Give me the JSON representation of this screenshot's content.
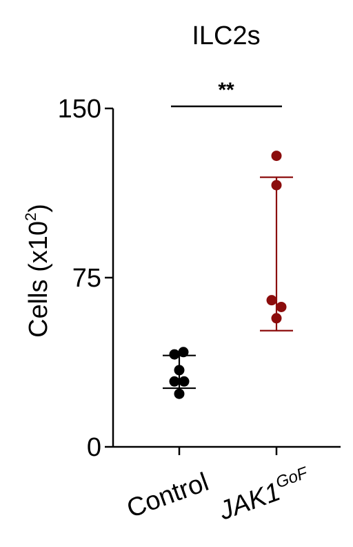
{
  "chart_data": {
    "type": "scatter",
    "title": "ILC2s",
    "ylabel": "Cells (x10",
    "ylabel_superscript": "2",
    "ylabel_suffix": ")",
    "ylim": [
      0,
      150
    ],
    "yticks": [
      "0",
      "75",
      "150"
    ],
    "categories": [
      {
        "label": "Control",
        "italic": false,
        "superscript": ""
      },
      {
        "label": "JAK1",
        "italic": true,
        "superscript": "GoF"
      }
    ],
    "series": [
      {
        "values": [
          41,
          42,
          34,
          29,
          29,
          23.5
        ],
        "jitter": [
          -0.07,
          0.06,
          0.0,
          -0.07,
          0.07,
          0.0
        ],
        "error_low": 26,
        "error_high": 40.5,
        "color": "#000000"
      },
      {
        "values": [
          129,
          116,
          65,
          62,
          57
        ],
        "jitter": [
          0.0,
          0.0,
          -0.07,
          0.07,
          0.0
        ],
        "error_low": 51.5,
        "error_high": 119.5,
        "color": "#8b0c0c"
      }
    ],
    "significance": {
      "label": "**",
      "between": [
        0,
        1
      ]
    },
    "grid": false,
    "legend": "none"
  }
}
